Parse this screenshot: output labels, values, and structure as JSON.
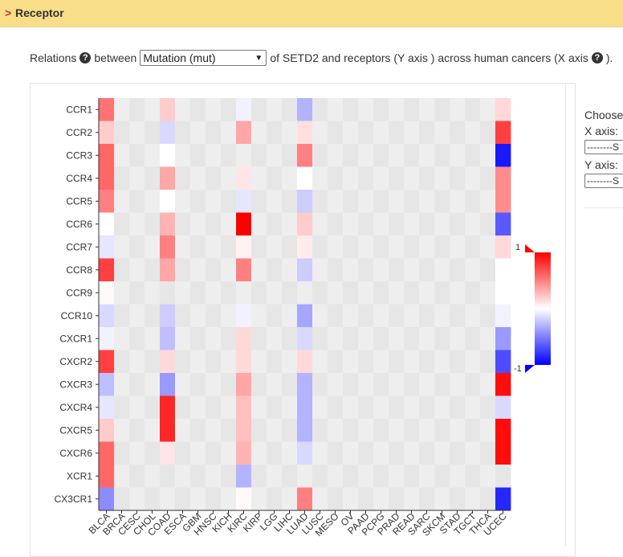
{
  "header": {
    "marker": ">",
    "title": "Receptor"
  },
  "relations": {
    "prefix": "Relations",
    "between": "between",
    "select_value": "Mutation (mut)",
    "suffix_a": "of SETD2 and receptors (Y axis ) across human cancers (X axis",
    "suffix_b": ")."
  },
  "side": {
    "choose_label": "Choose",
    "x_label": "X axis:",
    "x_select": "--------S",
    "y_label": "Y axis:",
    "y_select": "--------S"
  },
  "colors": {
    "high": "#ff0000",
    "mid": "#ffffff",
    "low": "#0000ff",
    "na": "#e3e3e3"
  },
  "chart_data": {
    "type": "heatmap",
    "title": "",
    "xlabel": "",
    "ylabel": "",
    "x_categories": [
      "BLCA",
      "BRCA",
      "CESC",
      "CHOL",
      "COAD",
      "ESCA",
      "GBM",
      "HNSC",
      "KICH",
      "KIRC",
      "KIRP",
      "LGG",
      "LIHC",
      "LUAD",
      "LUSC",
      "MESO",
      "OV",
      "PAAD",
      "PCPG",
      "PRAD",
      "READ",
      "SARC",
      "SKCM",
      "STAD",
      "TGCT",
      "THCA",
      "UCEC"
    ],
    "y_categories": [
      "CCR1",
      "CCR2",
      "CCR3",
      "CCR4",
      "CCR5",
      "CCR6",
      "CCR7",
      "CCR8",
      "CCR9",
      "CCR10",
      "CXCR1",
      "CXCR2",
      "CXCR3",
      "CXCR4",
      "CXCR5",
      "CXCR6",
      "XCR1",
      "CX3CR1"
    ],
    "value_range": [
      -1,
      1
    ],
    "legend": {
      "max_label": "1",
      "min_label": "-1"
    },
    "values": [
      [
        0.55,
        null,
        null,
        null,
        0.2,
        null,
        null,
        null,
        null,
        -0.05,
        null,
        null,
        null,
        -0.3,
        null,
        null,
        null,
        null,
        null,
        null,
        null,
        null,
        null,
        null,
        null,
        null,
        0.15
      ],
      [
        0.2,
        null,
        null,
        null,
        -0.15,
        null,
        null,
        null,
        null,
        0.35,
        null,
        null,
        null,
        0.12,
        null,
        null,
        null,
        null,
        null,
        null,
        null,
        null,
        null,
        null,
        null,
        null,
        0.75
      ],
      [
        0.6,
        null,
        null,
        null,
        0.0,
        null,
        null,
        null,
        null,
        null,
        null,
        null,
        null,
        0.5,
        null,
        null,
        null,
        null,
        null,
        null,
        null,
        null,
        null,
        null,
        null,
        null,
        -0.9
      ],
      [
        0.6,
        null,
        null,
        null,
        0.35,
        null,
        null,
        null,
        null,
        0.1,
        null,
        null,
        null,
        0.0,
        null,
        null,
        null,
        null,
        null,
        null,
        null,
        null,
        null,
        null,
        null,
        null,
        0.45
      ],
      [
        0.5,
        null,
        null,
        null,
        0.0,
        null,
        null,
        null,
        null,
        -0.1,
        null,
        null,
        null,
        -0.2,
        null,
        null,
        null,
        null,
        null,
        null,
        null,
        null,
        null,
        null,
        null,
        null,
        0.45
      ],
      [
        0.0,
        null,
        null,
        null,
        0.3,
        null,
        null,
        null,
        null,
        1.0,
        null,
        null,
        null,
        0.2,
        null,
        null,
        null,
        null,
        null,
        null,
        null,
        null,
        null,
        null,
        null,
        null,
        -0.65
      ],
      [
        -0.1,
        null,
        null,
        null,
        0.5,
        null,
        null,
        null,
        null,
        0.05,
        null,
        null,
        null,
        0.08,
        null,
        null,
        null,
        null,
        null,
        null,
        null,
        null,
        null,
        null,
        null,
        null,
        0.15
      ],
      [
        0.75,
        null,
        null,
        null,
        0.35,
        null,
        null,
        null,
        null,
        0.5,
        null,
        null,
        null,
        -0.2,
        null,
        null,
        null,
        null,
        null,
        null,
        null,
        null,
        null,
        null,
        null,
        null,
        0.0
      ],
      [
        0.02,
        null,
        null,
        null,
        null,
        null,
        null,
        null,
        null,
        null,
        null,
        null,
        null,
        null,
        null,
        null,
        null,
        null,
        null,
        null,
        null,
        null,
        null,
        null,
        null,
        null,
        0.0
      ],
      [
        -0.15,
        null,
        null,
        null,
        -0.2,
        null,
        null,
        null,
        null,
        -0.05,
        null,
        null,
        null,
        -0.35,
        null,
        null,
        null,
        null,
        null,
        null,
        null,
        null,
        null,
        null,
        null,
        null,
        -0.05
      ],
      [
        -0.05,
        null,
        null,
        null,
        -0.25,
        null,
        null,
        null,
        null,
        0.15,
        null,
        null,
        null,
        -0.15,
        null,
        null,
        null,
        null,
        null,
        null,
        null,
        null,
        null,
        null,
        null,
        null,
        -0.4
      ],
      [
        0.75,
        null,
        null,
        null,
        0.15,
        null,
        null,
        null,
        null,
        0.15,
        null,
        null,
        null,
        0.15,
        null,
        null,
        null,
        null,
        null,
        null,
        null,
        null,
        null,
        null,
        null,
        null,
        -0.7
      ],
      [
        -0.25,
        null,
        null,
        null,
        -0.4,
        null,
        null,
        null,
        null,
        0.35,
        null,
        null,
        null,
        -0.3,
        null,
        null,
        null,
        null,
        null,
        null,
        null,
        null,
        null,
        null,
        null,
        null,
        0.95
      ],
      [
        -0.1,
        null,
        null,
        null,
        0.85,
        null,
        null,
        null,
        null,
        0.25,
        null,
        null,
        null,
        -0.3,
        null,
        null,
        null,
        null,
        null,
        null,
        null,
        null,
        null,
        null,
        null,
        null,
        -0.15
      ],
      [
        0.2,
        null,
        null,
        null,
        0.85,
        null,
        null,
        null,
        null,
        0.25,
        null,
        null,
        null,
        -0.3,
        null,
        null,
        null,
        null,
        null,
        null,
        null,
        null,
        null,
        null,
        null,
        null,
        0.95
      ],
      [
        0.6,
        null,
        null,
        null,
        0.1,
        null,
        null,
        null,
        null,
        0.3,
        null,
        null,
        null,
        -0.15,
        null,
        null,
        null,
        null,
        null,
        null,
        null,
        null,
        null,
        null,
        null,
        null,
        0.95
      ],
      [
        0.6,
        null,
        null,
        null,
        null,
        null,
        null,
        null,
        null,
        -0.3,
        null,
        null,
        null,
        null,
        null,
        null,
        null,
        null,
        null,
        null,
        null,
        null,
        null,
        null,
        null,
        null,
        null
      ],
      [
        -0.45,
        null,
        null,
        null,
        null,
        null,
        null,
        null,
        null,
        0.02,
        null,
        null,
        null,
        0.5,
        null,
        null,
        null,
        null,
        null,
        null,
        null,
        null,
        null,
        null,
        null,
        null,
        -0.85
      ]
    ]
  }
}
